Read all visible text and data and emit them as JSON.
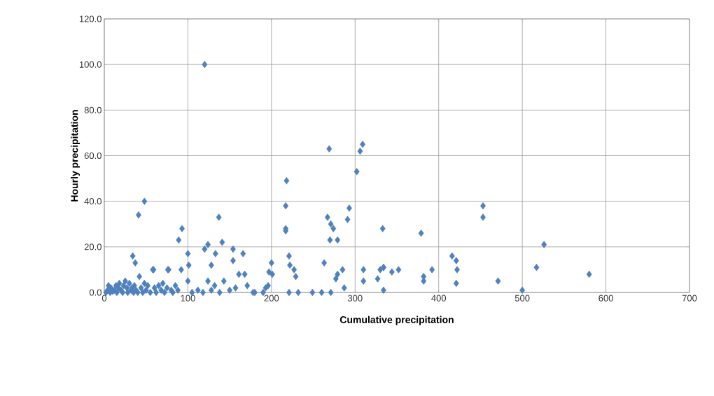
{
  "chart_data": {
    "type": "scatter",
    "xlabel": "Cumulative precipitation",
    "ylabel": "Hourly precipitation",
    "xlim": [
      0,
      700
    ],
    "ylim": [
      0,
      120
    ],
    "xticks": [
      0,
      100,
      200,
      300,
      400,
      500,
      600,
      700
    ],
    "yticks": [
      {
        "value": 0,
        "label": "0.0"
      },
      {
        "value": 20,
        "label": "20.0"
      },
      {
        "value": 40,
        "label": "40.0"
      },
      {
        "value": 60,
        "label": "60.0"
      },
      {
        "value": 80,
        "label": "80.0"
      },
      {
        "value": 100,
        "label": "100.0"
      },
      {
        "value": 120,
        "label": "120.0"
      }
    ],
    "grid": true,
    "marker": "diamond",
    "series": [
      {
        "color": "#4f81bd",
        "x": [
          2,
          4,
          5,
          7,
          8,
          10,
          12,
          14,
          15,
          17,
          18,
          20,
          22,
          23,
          25,
          27,
          28,
          30,
          32,
          33,
          35,
          36,
          38,
          40,
          42,
          44,
          46,
          48,
          50,
          52,
          55,
          58,
          60,
          62,
          65,
          68,
          70,
          72,
          75,
          77,
          80,
          82,
          85,
          88,
          34,
          37,
          41,
          48,
          93,
          89,
          100,
          59,
          76,
          92,
          101,
          100,
          120,
          124,
          137,
          141,
          133,
          128,
          154,
          166,
          154,
          161,
          168,
          124,
          132,
          143,
          157,
          171,
          105,
          112,
          118,
          128,
          138,
          150,
          180,
          190,
          120,
          218,
          217,
          217,
          217,
          302,
          267,
          271,
          274,
          270,
          279,
          293,
          291,
          333,
          221,
          222,
          227,
          229,
          263,
          285,
          279,
          277,
          287,
          200,
          197,
          201,
          193,
          196,
          221,
          232,
          249,
          260,
          271,
          310,
          310,
          330,
          334,
          327,
          334,
          178,
          269,
          309,
          306,
          379,
          453,
          453,
          526,
          334,
          344,
          352,
          382,
          382,
          392,
          416,
          421,
          422,
          421,
          471,
          500,
          517,
          580
        ],
        "values": [
          0,
          1,
          3,
          0,
          2,
          0.5,
          1,
          3,
          0,
          2,
          4,
          1,
          0,
          3,
          5,
          2,
          0,
          4,
          1,
          2,
          0,
          3,
          1,
          0,
          7,
          2,
          0,
          4,
          1,
          3,
          0,
          10,
          2,
          0,
          3,
          1,
          4,
          0,
          2,
          10,
          1,
          0,
          3,
          1,
          16,
          13,
          34,
          40,
          28,
          23,
          17,
          10,
          10,
          10,
          12,
          5,
          19,
          21,
          33,
          22,
          17,
          12,
          19,
          17,
          14,
          8,
          8,
          5,
          3,
          5,
          2,
          3,
          0,
          1,
          0,
          1,
          0,
          1,
          0,
          0,
          100,
          49,
          38,
          28,
          27,
          53,
          33,
          30,
          28,
          23,
          23,
          37,
          32,
          28,
          16,
          12,
          10,
          7,
          13,
          10,
          8,
          6,
          2,
          13,
          9,
          8,
          2,
          3,
          0,
          0,
          0,
          0,
          0,
          10,
          5,
          10,
          11,
          6,
          1,
          0,
          63,
          65,
          62,
          26,
          38,
          33,
          21,
          11,
          9,
          10,
          7,
          5,
          10,
          16,
          14,
          10,
          4,
          5,
          1,
          11,
          8
        ]
      }
    ]
  }
}
